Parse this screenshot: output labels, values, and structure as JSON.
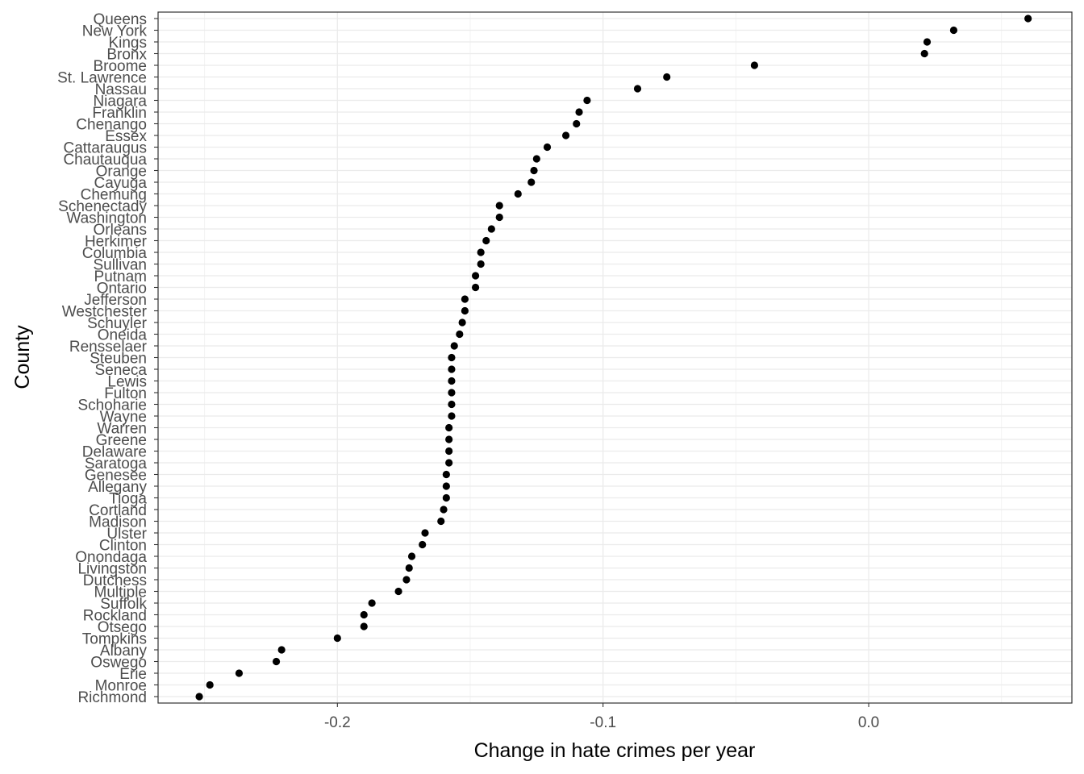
{
  "chart_data": {
    "type": "scatter",
    "title": "",
    "xlabel": "Change in hate crimes per year",
    "ylabel": "County",
    "xlim": [
      -0.2675,
      0.0765
    ],
    "x_ticks": [
      -0.2,
      -0.1,
      0.0
    ],
    "x_tick_labels": [
      "-0.2",
      "-0.1",
      "0.0"
    ],
    "grid": true,
    "legend": "none",
    "point_color": "#000000",
    "points": [
      {
        "county": "Queens",
        "x": 0.06
      },
      {
        "county": "New York",
        "x": 0.032
      },
      {
        "county": "Kings",
        "x": 0.022
      },
      {
        "county": "Bronx",
        "x": 0.021
      },
      {
        "county": "Broome",
        "x": -0.043
      },
      {
        "county": "St. Lawrence",
        "x": -0.076
      },
      {
        "county": "Nassau",
        "x": -0.087
      },
      {
        "county": "Niagara",
        "x": -0.106
      },
      {
        "county": "Franklin",
        "x": -0.109
      },
      {
        "county": "Chenango",
        "x": -0.11
      },
      {
        "county": "Essex",
        "x": -0.114
      },
      {
        "county": "Cattaraugus",
        "x": -0.121
      },
      {
        "county": "Chautauqua",
        "x": -0.125
      },
      {
        "county": "Orange",
        "x": -0.126
      },
      {
        "county": "Cayuga",
        "x": -0.127
      },
      {
        "county": "Chemung",
        "x": -0.132
      },
      {
        "county": "Schenectady",
        "x": -0.139
      },
      {
        "county": "Washington",
        "x": -0.139
      },
      {
        "county": "Orleans",
        "x": -0.142
      },
      {
        "county": "Herkimer",
        "x": -0.144
      },
      {
        "county": "Columbia",
        "x": -0.146
      },
      {
        "county": "Sullivan",
        "x": -0.146
      },
      {
        "county": "Putnam",
        "x": -0.148
      },
      {
        "county": "Ontario",
        "x": -0.148
      },
      {
        "county": "Jefferson",
        "x": -0.152
      },
      {
        "county": "Westchester",
        "x": -0.152
      },
      {
        "county": "Schuyler",
        "x": -0.153
      },
      {
        "county": "Oneida",
        "x": -0.154
      },
      {
        "county": "Rensselaer",
        "x": -0.156
      },
      {
        "county": "Steuben",
        "x": -0.157
      },
      {
        "county": "Seneca",
        "x": -0.157
      },
      {
        "county": "Lewis",
        "x": -0.157
      },
      {
        "county": "Fulton",
        "x": -0.157
      },
      {
        "county": "Schoharie",
        "x": -0.157
      },
      {
        "county": "Wayne",
        "x": -0.157
      },
      {
        "county": "Warren",
        "x": -0.158
      },
      {
        "county": "Greene",
        "x": -0.158
      },
      {
        "county": "Delaware",
        "x": -0.158
      },
      {
        "county": "Saratoga",
        "x": -0.158
      },
      {
        "county": "Genesee",
        "x": -0.159
      },
      {
        "county": "Allegany",
        "x": -0.159
      },
      {
        "county": "Tioga",
        "x": -0.159
      },
      {
        "county": "Cortland",
        "x": -0.16
      },
      {
        "county": "Madison",
        "x": -0.161
      },
      {
        "county": "Ulster",
        "x": -0.167
      },
      {
        "county": "Clinton",
        "x": -0.168
      },
      {
        "county": "Onondaga",
        "x": -0.172
      },
      {
        "county": "Livingston",
        "x": -0.173
      },
      {
        "county": "Dutchess",
        "x": -0.174
      },
      {
        "county": "Multiple",
        "x": -0.177
      },
      {
        "county": "Suffolk",
        "x": -0.187
      },
      {
        "county": "Rockland",
        "x": -0.19
      },
      {
        "county": "Otsego",
        "x": -0.19
      },
      {
        "county": "Tompkins",
        "x": -0.2
      },
      {
        "county": "Albany",
        "x": -0.221
      },
      {
        "county": "Oswego",
        "x": -0.223
      },
      {
        "county": "Erie",
        "x": -0.237
      },
      {
        "county": "Monroe",
        "x": -0.248
      },
      {
        "county": "Richmond",
        "x": -0.252
      }
    ]
  }
}
